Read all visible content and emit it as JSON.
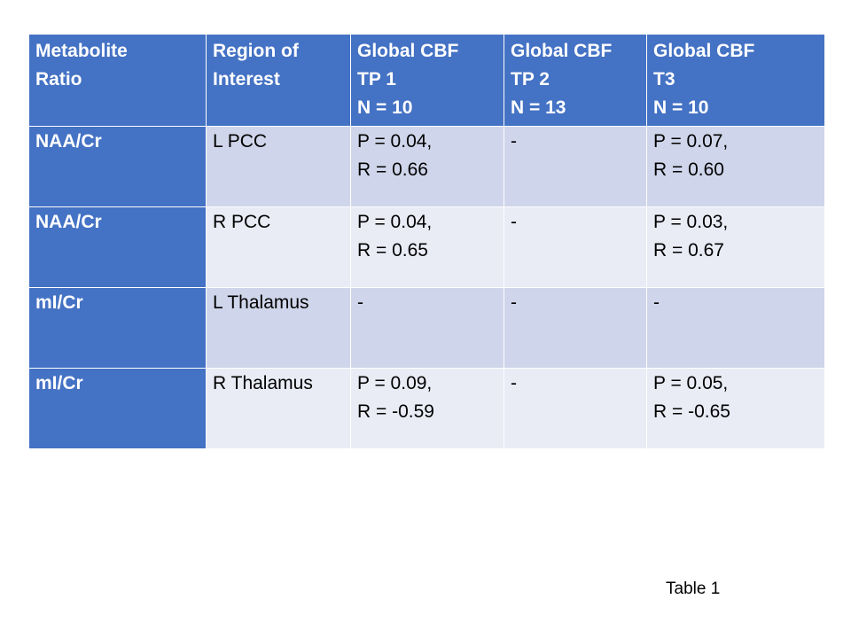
{
  "table": {
    "headers": [
      [
        "Metabolite",
        "Ratio"
      ],
      [
        "Region of",
        "Interest"
      ],
      [
        "Global CBF",
        "TP 1",
        "N = 10"
      ],
      [
        "Global CBF",
        "TP 2",
        "N = 13"
      ],
      [
        "Global CBF",
        "T3",
        "N = 10"
      ]
    ],
    "rows": [
      {
        "metabolite": "NAA/Cr",
        "region": "L PCC",
        "tp1": [
          "P = 0.04,",
          "R = 0.66"
        ],
        "tp2": [
          "-"
        ],
        "t3": [
          "P = 0.07,",
          "R = 0.60"
        ]
      },
      {
        "metabolite": "NAA/Cr",
        "region": "R PCC",
        "tp1": [
          "P = 0.04,",
          "R = 0.65"
        ],
        "tp2": [
          "-"
        ],
        "t3": [
          "P = 0.03,",
          "R = 0.67"
        ]
      },
      {
        "metabolite": "mI/Cr",
        "region": "L Thalamus",
        "tp1": [
          "-"
        ],
        "tp2": [
          "-"
        ],
        "t3": [
          "-"
        ]
      },
      {
        "metabolite": "mI/Cr",
        "region": "R Thalamus",
        "tp1": [
          "P = 0.09,",
          "R = -0.59"
        ],
        "tp2": [
          "-"
        ],
        "t3": [
          "P = 0.05,",
          "R = -0.65"
        ]
      }
    ]
  },
  "caption": "Table 1"
}
